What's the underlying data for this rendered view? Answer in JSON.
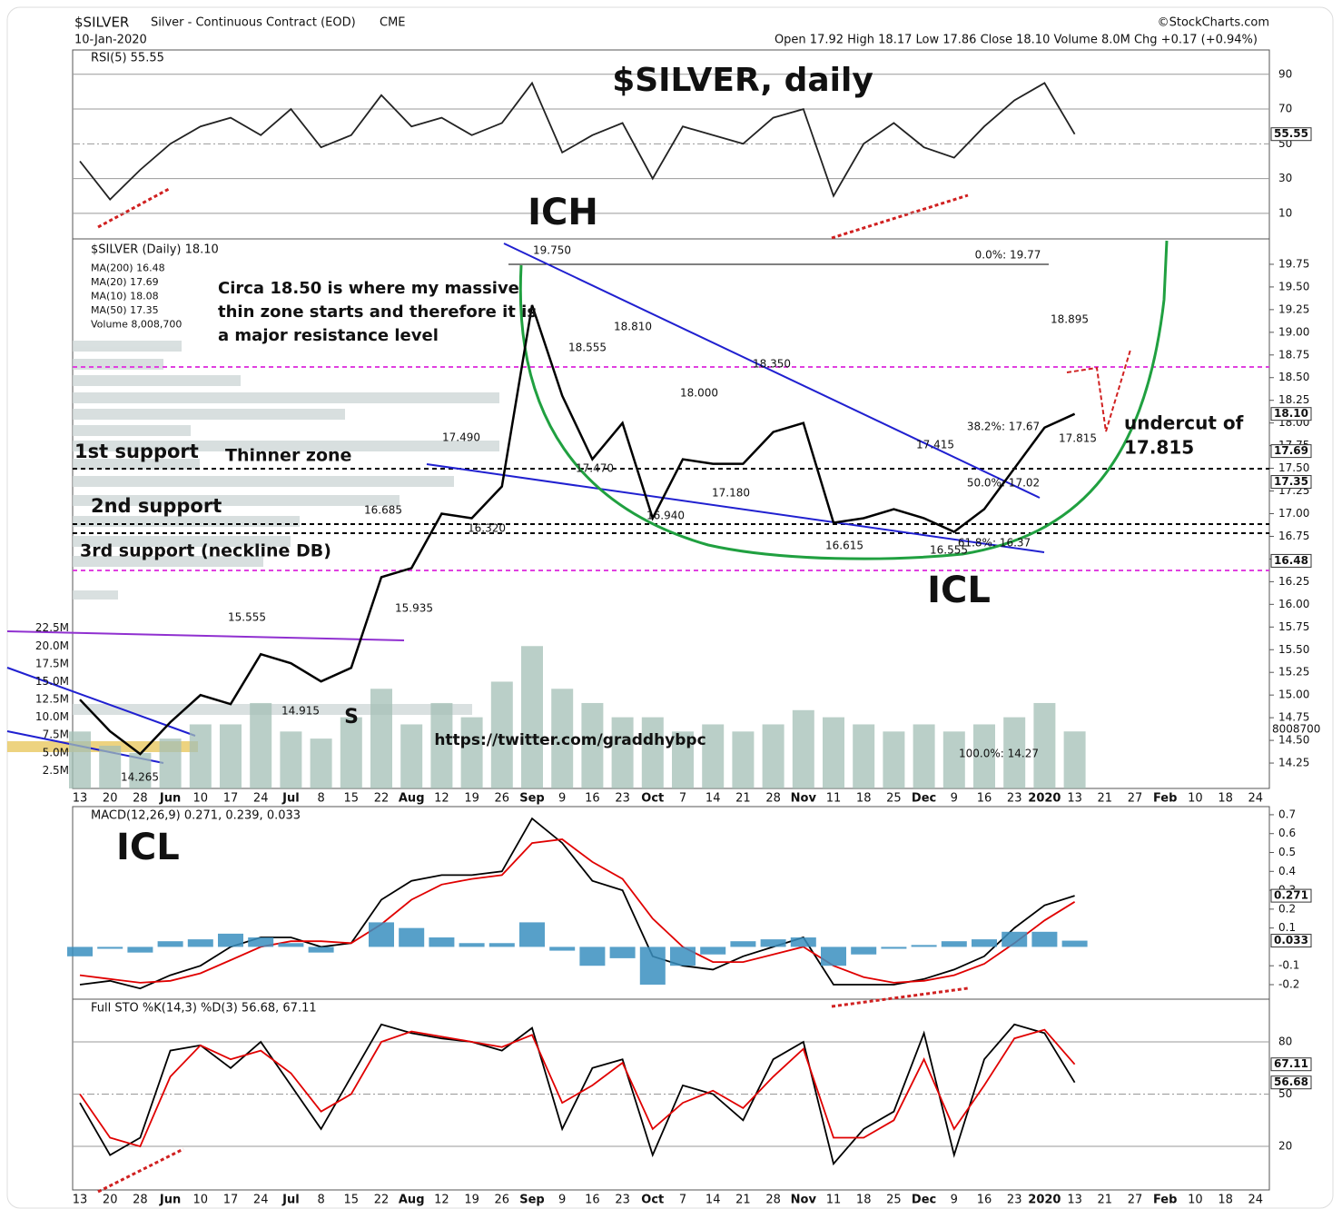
{
  "header": {
    "symbol": "$SILVER",
    "name": "Silver - Continuous Contract (EOD)",
    "exchange": "CME",
    "date": "10-Jan-2020",
    "source": "©StockCharts.com",
    "quote": "Open 17.92  High 18.17  Low 17.86  Close 18.10  Volume 8.0M  Chg +0.17 (+0.94%)"
  },
  "chart_data": [
    {
      "type": "line",
      "legend": "RSI(5) 55.55",
      "ylim": [
        -4.7,
        104
      ],
      "yticks": [
        10,
        30,
        50,
        70,
        90
      ],
      "series": [
        {
          "name": "RSI(5)",
          "color": "#222222",
          "values": [
            40,
            18,
            35,
            50,
            60,
            65,
            55,
            70,
            48,
            55,
            78,
            60,
            65,
            55,
            62,
            85,
            45,
            55,
            62,
            30,
            60,
            55,
            50,
            65,
            70,
            20,
            50,
            62,
            48,
            42,
            60,
            75,
            85,
            55.55,
            null,
            null,
            null,
            null,
            null,
            null
          ]
        }
      ],
      "tags": [
        {
          "value": 55.55,
          "label": "55.55"
        }
      ]
    },
    {
      "type": "line",
      "legend": [
        "$SILVER (Daily) 18.10",
        "MA(200) 16.48",
        "MA(20) 17.69",
        "MA(10) 18.08",
        "MA(50) 17.35",
        "Volume 8,008,700"
      ],
      "categories": [
        "13",
        "20",
        "28",
        "Jun",
        "10",
        "17",
        "24",
        "Jul",
        "8",
        "15",
        "22",
        "Aug",
        "12",
        "19",
        "26",
        "Sep",
        "9",
        "16",
        "23",
        "Oct",
        "7",
        "14",
        "21",
        "28",
        "Nov",
        "11",
        "18",
        "25",
        "Dec",
        "9",
        "16",
        "23",
        "2020",
        "13",
        "21",
        "27",
        "Feb",
        "10",
        "18",
        "24"
      ],
      "ylim": [
        13.97,
        20.03
      ],
      "yticks": [
        {
          "value": 14.25,
          "label": "14.25"
        },
        {
          "value": 14.5,
          "label": "14.50"
        },
        14.75,
        {
          "value": 15,
          "label": "15.00"
        },
        15.25,
        {
          "value": 15.5,
          "label": "15.50"
        },
        15.75,
        {
          "value": 16,
          "label": "16.00"
        },
        16.25,
        {
          "value": 16.5,
          "label": "16.50"
        },
        16.75,
        {
          "value": 17,
          "label": "17.00"
        },
        17.25,
        {
          "value": 17.5,
          "label": "17.50"
        },
        17.75,
        {
          "value": 18,
          "label": "18.00"
        },
        18.25,
        {
          "value": 18.5,
          "label": "18.50"
        },
        18.75,
        {
          "value": 19,
          "label": "19.00"
        },
        19.25,
        {
          "value": 19.5,
          "label": "19.50"
        },
        19.75
      ],
      "y2lim": [
        0,
        77.2
      ],
      "y2ticks": [
        {
          "value": 2.5,
          "label": "2.5M"
        },
        {
          "value": 5,
          "label": "5.0M"
        },
        {
          "value": 7.5,
          "label": "7.5M"
        },
        {
          "value": 10,
          "label": "10.0M"
        },
        {
          "value": 12.5,
          "label": "12.5M"
        },
        {
          "value": 15,
          "label": "15.0M"
        },
        {
          "value": 17.5,
          "label": "17.5M"
        },
        {
          "value": 20,
          "label": "20.0M"
        },
        {
          "value": 22.5,
          "label": "22.5M"
        }
      ],
      "series": [
        {
          "name": "$SILVER",
          "color": "#000000",
          "values": [
            14.95,
            14.6,
            14.35,
            14.7,
            15.0,
            14.9,
            15.45,
            15.35,
            15.15,
            15.3,
            16.3,
            16.4,
            17.0,
            16.95,
            17.3,
            19.3,
            18.3,
            17.6,
            18.0,
            16.95,
            17.6,
            17.55,
            17.55,
            17.9,
            18.0,
            16.9,
            16.95,
            17.05,
            16.95,
            16.8,
            17.05,
            17.5,
            17.95,
            18.1,
            null,
            null,
            null,
            null,
            null,
            null
          ]
        },
        {
          "name": "Volume",
          "color": "#a3bfb5",
          "axis": "y2",
          "values": [
            8,
            6,
            5,
            7,
            9,
            9,
            12,
            8,
            7,
            10,
            14,
            9,
            12,
            10,
            15,
            20,
            14,
            12,
            10,
            10,
            8,
            9,
            8,
            9,
            11,
            10,
            9,
            8,
            9,
            8,
            9,
            10,
            12,
            8.0087,
            null,
            null,
            null,
            null,
            null,
            null
          ]
        }
      ],
      "tags": [
        {
          "value": 18.1,
          "label": "18.10"
        },
        {
          "value": 17.69,
          "label": "17.69"
        },
        {
          "value": 17.35,
          "label": "17.35"
        },
        {
          "value": 16.48,
          "label": "16.48"
        }
      ],
      "volume_tag": "8008700",
      "price_labels": [
        "19.750",
        "18.810",
        "18.555",
        "18.350",
        "18.000",
        "17.490",
        "17.470",
        "17.180",
        "16.940",
        "16.685",
        "16.320",
        "15.935",
        "15.555",
        "14.915",
        "14.265",
        "16.615",
        "16.555",
        "17.415",
        "17.815",
        "18.895",
        "0.0%: 19.77",
        "38.2%: 17.67",
        "50.0%: 17.02",
        "61.8%: 16.37",
        "100.0%: 14.27"
      ],
      "annotations": [
        "$SILVER, daily",
        "ICH",
        "ICL",
        "Circa 18.50 is where my massive",
        "thin zone starts and therefore it is",
        "a major resistance level",
        "1st support",
        "Thinner zone",
        "2nd support",
        "3rd support (neckline DB)",
        "undercut of",
        "17.815",
        "S",
        "https://twitter.com/graddhybpc"
      ]
    },
    {
      "type": "line",
      "legend": "MACD(12,26,9) 0.271, 0.239, 0.033",
      "ylim": [
        -0.277,
        0.743
      ],
      "yticks": [
        -0.2,
        -0.1,
        0.1,
        0.2,
        0.3,
        0.4,
        0.5,
        0.6,
        0.7
      ],
      "series": [
        {
          "name": "MACD",
          "color": "#000000",
          "values": [
            -0.2,
            -0.18,
            -0.22,
            -0.15,
            -0.1,
            0,
            0.05,
            0.05,
            0,
            0.02,
            0.25,
            0.35,
            0.38,
            0.38,
            0.4,
            0.68,
            0.55,
            0.35,
            0.3,
            -0.05,
            -0.1,
            -0.12,
            -0.05,
            0,
            0.05,
            -0.2,
            -0.2,
            -0.2,
            -0.17,
            -0.12,
            -0.05,
            0.1,
            0.22,
            0.271,
            null,
            null,
            null,
            null,
            null,
            null
          ]
        },
        {
          "name": "Signal",
          "color": "#e00000",
          "values": [
            -0.15,
            -0.17,
            -0.19,
            -0.18,
            -0.14,
            -0.07,
            0,
            0.03,
            0.03,
            0.02,
            0.12,
            0.25,
            0.33,
            0.36,
            0.38,
            0.55,
            0.57,
            0.45,
            0.36,
            0.15,
            0,
            -0.08,
            -0.08,
            -0.04,
            0,
            -0.1,
            -0.16,
            -0.19,
            -0.18,
            -0.15,
            -0.09,
            0.02,
            0.14,
            0.239,
            null,
            null,
            null,
            null,
            null,
            null
          ]
        },
        {
          "name": "Histogram",
          "color": "#3a8fc0",
          "values": [
            -0.05,
            -0.01,
            -0.03,
            0.03,
            0.04,
            0.07,
            0.05,
            0.02,
            -0.03,
            0,
            0.13,
            0.1,
            0.05,
            0.02,
            0.02,
            0.13,
            -0.02,
            -0.1,
            -0.06,
            -0.2,
            -0.1,
            -0.04,
            0.03,
            0.04,
            0.05,
            -0.1,
            -0.04,
            -0.01,
            0.01,
            0.03,
            0.04,
            0.08,
            0.08,
            0.033,
            null,
            null,
            null,
            null,
            null,
            null
          ]
        }
      ],
      "tags": [
        {
          "value": 0.271,
          "label": "0.271"
        },
        {
          "value": 0.033,
          "label": "0.033"
        }
      ],
      "annotations": [
        "ICL"
      ]
    },
    {
      "type": "line",
      "legend": "Full STO %K(14,3) %D(3) 56.68, 67.11",
      "ylim": [
        -5,
        104.5
      ],
      "yticks": [
        20,
        50,
        80
      ],
      "categories": [
        "13",
        "20",
        "28",
        "Jun",
        "10",
        "17",
        "24",
        "Jul",
        "8",
        "15",
        "22",
        "Aug",
        "12",
        "19",
        "26",
        "Sep",
        "9",
        "16",
        "23",
        "Oct",
        "7",
        "14",
        "21",
        "28",
        "Nov",
        "11",
        "18",
        "25",
        "Dec",
        "9",
        "16",
        "23",
        "2020",
        "13",
        "21",
        "27",
        "Feb",
        "10",
        "18",
        "24"
      ],
      "series": [
        {
          "name": "%K",
          "color": "#000000",
          "values": [
            45,
            15,
            25,
            75,
            78,
            65,
            80,
            55,
            30,
            60,
            90,
            85,
            82,
            80,
            75,
            88,
            30,
            65,
            70,
            15,
            55,
            50,
            35,
            70,
            80,
            10,
            30,
            40,
            85,
            15,
            70,
            90,
            85,
            56.68,
            null,
            null,
            null,
            null,
            null,
            null
          ]
        },
        {
          "name": "%D",
          "color": "#e00000",
          "values": [
            50,
            25,
            20,
            60,
            78,
            70,
            75,
            62,
            40,
            50,
            80,
            86,
            83,
            80,
            77,
            84,
            45,
            55,
            68,
            30,
            45,
            52,
            42,
            60,
            76,
            25,
            25,
            35,
            70,
            30,
            55,
            82,
            87,
            67.11,
            null,
            null,
            null,
            null,
            null,
            null
          ]
        }
      ],
      "tags": [
        {
          "value": 67.11,
          "label": "67.11"
        },
        {
          "value": 56.68,
          "label": "56.68"
        }
      ]
    }
  ]
}
